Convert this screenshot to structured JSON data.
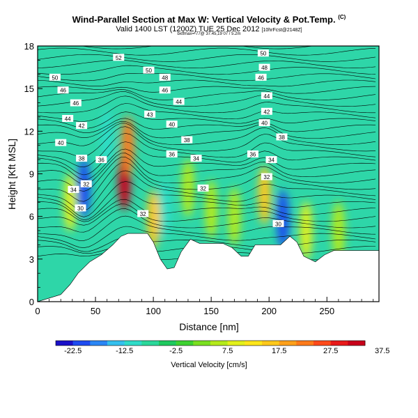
{
  "title": "Wind-Parallel Section at Max W: Vertical Velocity & Pot.Temp.",
  "title_mark": "(C)",
  "subtitle_main": "Valid 1400 LST (1200Z) TUE 25 Dec 2012",
  "subtitle_small": "[10hrFcst@2148Z]",
  "subtitle_extra": "bxtfmax=-77@ 37.45,19 07 / 5.2m",
  "chart_data": {
    "type": "heatmap",
    "xlabel": "Distance [nm]",
    "ylabel": "Height [Kft MSL]",
    "xlim": [
      0,
      295
    ],
    "ylim": [
      0,
      18
    ],
    "xticks": [
      0,
      50,
      100,
      150,
      200,
      250
    ],
    "yticks": [
      0,
      3,
      6,
      9,
      12,
      15,
      18
    ],
    "colorbar_label": "Vertical Velocity [cm/s]",
    "colorbar_ticks": [
      "-22.5",
      "-12.5",
      "-2.5",
      "7.5",
      "17.5",
      "27.5",
      "37.5"
    ],
    "colorbar_colors": [
      "#1a10c8",
      "#1e4bf0",
      "#2a86f5",
      "#34c0ee",
      "#2fdcc8",
      "#2ad89a",
      "#1ec95e",
      "#3ed230",
      "#7ae020",
      "#b4ea1a",
      "#e2f01a",
      "#ffe61a",
      "#ffc81a",
      "#ffa01a",
      "#ff7a1a",
      "#ff4a1a",
      "#e81a1a",
      "#c8001a"
    ],
    "terrain": [
      [
        0,
        0
      ],
      [
        20,
        0.5
      ],
      [
        28,
        1.2
      ],
      [
        35,
        2.0
      ],
      [
        45,
        2.8
      ],
      [
        55,
        3.3
      ],
      [
        65,
        4.0
      ],
      [
        72,
        4.6
      ],
      [
        78,
        4.8
      ],
      [
        95,
        4.8
      ],
      [
        100,
        4.2
      ],
      [
        106,
        3.0
      ],
      [
        112,
        2.3
      ],
      [
        118,
        2.4
      ],
      [
        124,
        3.5
      ],
      [
        132,
        4.4
      ],
      [
        140,
        4.1
      ],
      [
        150,
        4.1
      ],
      [
        160,
        4.1
      ],
      [
        168,
        3.8
      ],
      [
        176,
        3.2
      ],
      [
        182,
        3.2
      ],
      [
        188,
        4.0
      ],
      [
        210,
        4.0
      ],
      [
        218,
        4.6
      ],
      [
        224,
        4.2
      ],
      [
        230,
        3.2
      ],
      [
        240,
        2.8
      ],
      [
        248,
        3.3
      ],
      [
        256,
        3.6
      ],
      [
        295,
        3.6
      ]
    ],
    "velocity_features": [
      {
        "x": 75,
        "z": 8.5,
        "value": 40
      },
      {
        "x": 78,
        "z": 11.0,
        "value": 30
      },
      {
        "x": 40,
        "z": 8.0,
        "value": -20
      },
      {
        "x": 60,
        "z": 11.5,
        "value": -10
      },
      {
        "x": 110,
        "z": 6.5,
        "value": -10
      },
      {
        "x": 100,
        "z": 5.8,
        "value": 20
      },
      {
        "x": 196,
        "z": 7.5,
        "value": 22
      },
      {
        "x": 212,
        "z": 5.8,
        "value": -20
      },
      {
        "x": 28,
        "z": 7.0,
        "value": 12
      },
      {
        "x": 232,
        "z": 5.0,
        "value": 14
      },
      {
        "x": 150,
        "z": 6.5,
        "value": 9
      },
      {
        "x": 170,
        "z": 6.0,
        "value": 9
      },
      {
        "x": 260,
        "z": 5.0,
        "value": 9
      },
      {
        "x": 130,
        "z": 8.0,
        "value": 9
      }
    ],
    "contour_labels": [
      {
        "x": 70,
        "z": 17.2,
        "text": "52"
      },
      {
        "x": 195,
        "z": 17.5,
        "text": "50"
      },
      {
        "x": 15,
        "z": 15.8,
        "text": "50"
      },
      {
        "x": 96,
        "z": 16.3,
        "text": "50"
      },
      {
        "x": 196,
        "z": 16.5,
        "text": "48"
      },
      {
        "x": 110,
        "z": 15.8,
        "text": "48"
      },
      {
        "x": 193,
        "z": 15.8,
        "text": "46"
      },
      {
        "x": 22,
        "z": 14.9,
        "text": "46"
      },
      {
        "x": 110,
        "z": 14.9,
        "text": "46"
      },
      {
        "x": 198,
        "z": 14.5,
        "text": "44"
      },
      {
        "x": 33,
        "z": 14.0,
        "text": "46"
      },
      {
        "x": 122,
        "z": 14.1,
        "text": "44"
      },
      {
        "x": 198,
        "z": 13.4,
        "text": "42"
      },
      {
        "x": 26,
        "z": 12.9,
        "text": "44"
      },
      {
        "x": 97,
        "z": 13.2,
        "text": "43"
      },
      {
        "x": 38,
        "z": 12.4,
        "text": "42"
      },
      {
        "x": 116,
        "z": 12.5,
        "text": "40"
      },
      {
        "x": 196,
        "z": 12.6,
        "text": "40"
      },
      {
        "x": 20,
        "z": 11.2,
        "text": "40"
      },
      {
        "x": 129,
        "z": 11.4,
        "text": "38"
      },
      {
        "x": 211,
        "z": 11.6,
        "text": "38"
      },
      {
        "x": 38,
        "z": 10.1,
        "text": "38"
      },
      {
        "x": 55,
        "z": 10.0,
        "text": "36"
      },
      {
        "x": 116,
        "z": 10.4,
        "text": "36"
      },
      {
        "x": 186,
        "z": 10.4,
        "text": "36"
      },
      {
        "x": 137,
        "z": 10.1,
        "text": "34"
      },
      {
        "x": 202,
        "z": 10.0,
        "text": "34"
      },
      {
        "x": 31,
        "z": 7.9,
        "text": "34"
      },
      {
        "x": 42,
        "z": 8.3,
        "text": "32"
      },
      {
        "x": 143,
        "z": 8.0,
        "text": "32"
      },
      {
        "x": 198,
        "z": 8.8,
        "text": "32"
      },
      {
        "x": 37,
        "z": 6.6,
        "text": "30"
      },
      {
        "x": 91,
        "z": 6.2,
        "text": "32"
      },
      {
        "x": 208,
        "z": 5.5,
        "text": "30"
      }
    ]
  }
}
